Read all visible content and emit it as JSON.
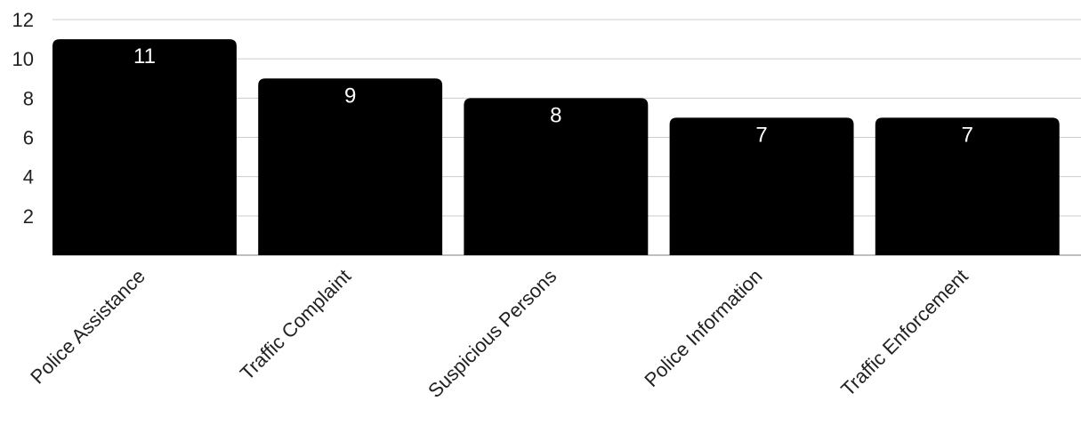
{
  "chart_data": {
    "type": "bar",
    "categories": [
      "Police Assistance",
      "Traffic Complaint",
      "Suspicious Persons",
      "Police Information",
      "Traffic Enforcement"
    ],
    "values": [
      11,
      9,
      8,
      7,
      7
    ],
    "data_labels": [
      "11",
      "9",
      "8",
      "7",
      "7"
    ],
    "y_ticks": [
      2,
      4,
      6,
      8,
      10,
      12
    ],
    "y_tick_labels": [
      "2",
      "4",
      "6",
      "8",
      "10",
      "12"
    ],
    "ylim": [
      0,
      12
    ],
    "grid": true,
    "bar_color": "#000000",
    "label_color": "#ffffff",
    "grid_color": "#cccccc"
  }
}
